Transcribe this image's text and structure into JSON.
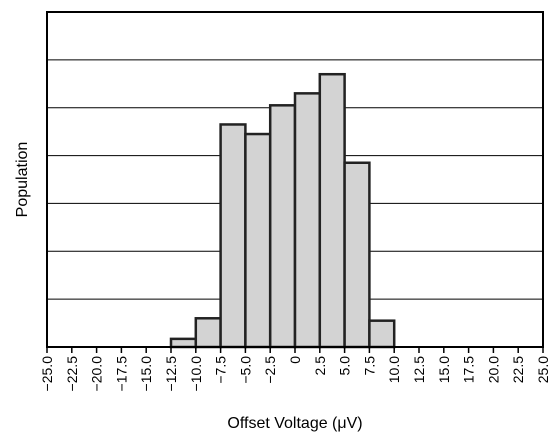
{
  "chart_data": {
    "type": "bar",
    "title": "",
    "xlabel": "Offset Voltage (μV)",
    "ylabel": "Population",
    "xlim": [
      -25.0,
      25.0
    ],
    "ylim": [
      0,
      7
    ],
    "grid": {
      "horizontal": true,
      "vertical": false
    },
    "y_tick_labels_shown": false,
    "bin_width": 2.5,
    "bins": [
      {
        "start": -12.5,
        "end": -10.0,
        "value": 0.17
      },
      {
        "start": -10.0,
        "end": -7.5,
        "value": 0.6
      },
      {
        "start": -7.5,
        "end": -5.0,
        "value": 4.65
      },
      {
        "start": -5.0,
        "end": -2.5,
        "value": 4.45
      },
      {
        "start": -2.5,
        "end": 0.0,
        "value": 5.05
      },
      {
        "start": 0.0,
        "end": 2.5,
        "value": 5.3
      },
      {
        "start": 2.5,
        "end": 5.0,
        "value": 5.7
      },
      {
        "start": 5.0,
        "end": 7.5,
        "value": 3.85
      },
      {
        "start": 7.5,
        "end": 10.0,
        "value": 0.55
      }
    ],
    "x_ticks": [
      "−25.0",
      "−22.5",
      "−20.0",
      "−17.5",
      "−15.0",
      "−12.5",
      "−10.0",
      "−7.5",
      "−5.0",
      "−2.5",
      "0",
      "2.5",
      "5.0",
      "7.5",
      "10.0",
      "12.5",
      "15.0",
      "17.5",
      "20.0",
      "22.5",
      "25.0"
    ],
    "x_tick_values": [
      -25.0,
      -22.5,
      -20.0,
      -17.5,
      -15.0,
      -12.5,
      -10.0,
      -7.5,
      -5.0,
      -2.5,
      0,
      2.5,
      5.0,
      7.5,
      10.0,
      12.5,
      15.0,
      17.5,
      20.0,
      22.5,
      25.0
    ],
    "colors": {
      "bar_fill": "#d3d3d3",
      "bar_stroke": "#222222",
      "grid": "#000000",
      "frame": "#000000"
    }
  }
}
